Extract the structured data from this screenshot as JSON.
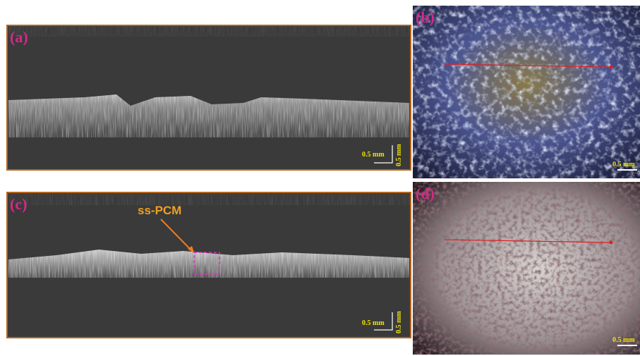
{
  "panels": [
    {
      "label": "(a)",
      "scale_x": "0.5 mm",
      "scale_y": "0.5 mm"
    },
    {
      "label": "(b)",
      "scale": "0.5 mm"
    },
    {
      "label": "(c)",
      "scale_x": "0.5 mm",
      "scale_y": "0.5 mm",
      "annotation": "ss-PCM"
    },
    {
      "label": "(d)",
      "scale": "0.5 mm"
    }
  ]
}
